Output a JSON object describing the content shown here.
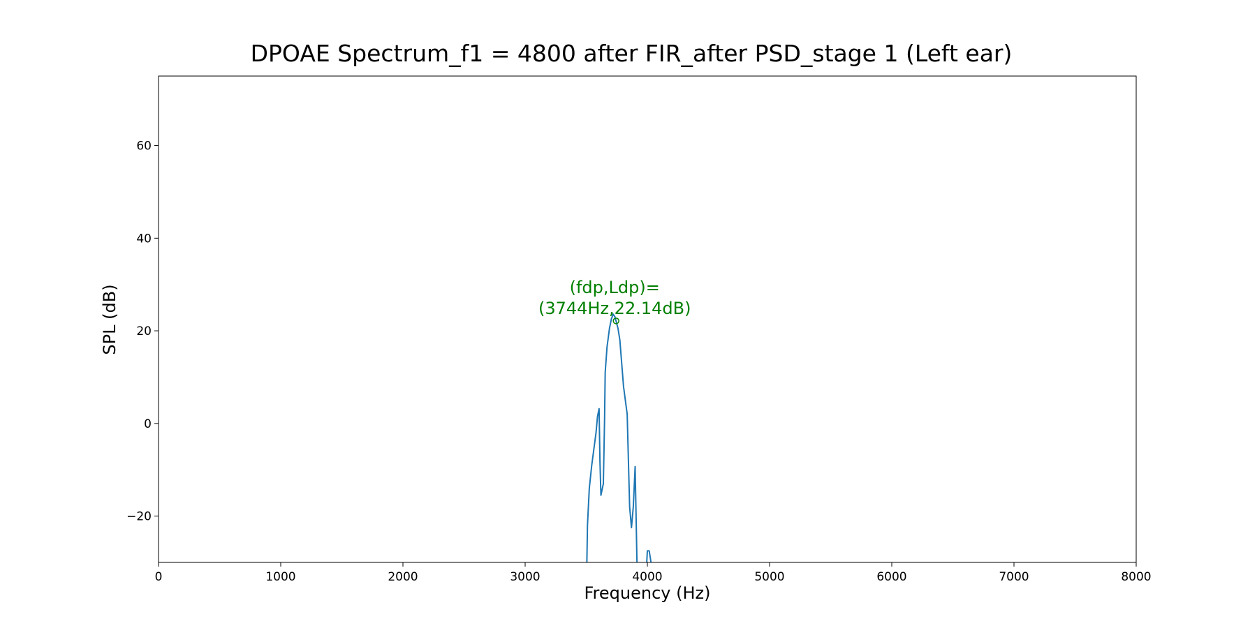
{
  "chart_data": {
    "type": "line",
    "title": "DPOAE Spectrum_f1 = 4800 after FIR_after PSD_stage 1 (Left ear)",
    "xlabel": "Frequency (Hz)",
    "ylabel": "SPL (dB)",
    "xlim": [
      0,
      8000
    ],
    "ylim": [
      -30,
      75
    ],
    "xticks": [
      0,
      1000,
      2000,
      3000,
      4000,
      5000,
      6000,
      7000,
      8000
    ],
    "yticks": [
      -20,
      0,
      20,
      40,
      60
    ],
    "xtick_labels": [
      "0",
      "1000",
      "2000",
      "3000",
      "4000",
      "5000",
      "6000",
      "7000",
      "8000"
    ],
    "ytick_labels": [
      "−20",
      "0",
      "20",
      "40",
      "60"
    ],
    "grid": false,
    "series_color": "#1f77b4",
    "annotation_color": "#008000",
    "series": [
      {
        "segments": [
          [
            [
              3505,
              -30
            ],
            [
              3510,
              -22
            ],
            [
              3525,
              -14
            ],
            [
              3545,
              -9
            ],
            [
              3565,
              -5
            ],
            [
              3580,
              -2
            ],
            [
              3592,
              1.5
            ],
            [
              3605,
              3.2
            ],
            [
              3612,
              -8
            ],
            [
              3620,
              -15.5
            ],
            [
              3640,
              -13
            ],
            [
              3650,
              1
            ],
            [
              3655,
              11
            ],
            [
              3670,
              16.5
            ],
            [
              3690,
              20.5
            ],
            [
              3705,
              22.5
            ],
            [
              3720,
              23.6
            ],
            [
              3735,
              23
            ],
            [
              3744,
              22.1
            ],
            [
              3760,
              20.5
            ],
            [
              3775,
              18
            ],
            [
              3790,
              13
            ],
            [
              3805,
              8
            ],
            [
              3835,
              2
            ],
            [
              3845,
              -8
            ],
            [
              3855,
              -18
            ],
            [
              3870,
              -22.5
            ],
            [
              3885,
              -18
            ],
            [
              3900,
              -9.3
            ],
            [
              3915,
              -30
            ]
          ],
          [
            [
              3995,
              -30
            ],
            [
              4000,
              -27.5
            ],
            [
              4015,
              -27.5
            ],
            [
              4030,
              -30
            ]
          ]
        ]
      }
    ],
    "annotation": {
      "point": [
        3744,
        22.14
      ],
      "text_line1": "(fdp,Ldp)=",
      "text_line2": "(3744Hz,22.14dB)"
    }
  }
}
